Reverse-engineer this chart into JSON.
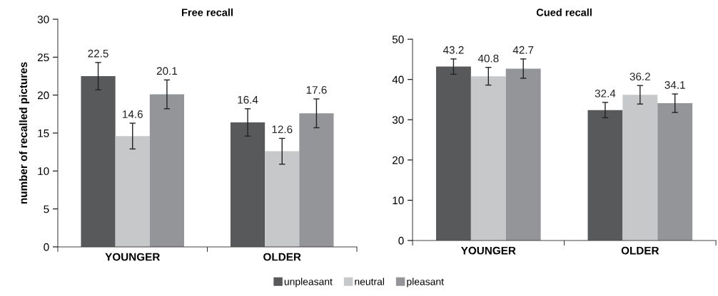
{
  "chart_data": [
    {
      "type": "bar",
      "title": "Free recall",
      "ylabel": "number of recalled pictures",
      "categories": [
        "YOUNGER",
        "OLDER"
      ],
      "series": [
        {
          "name": "unpleasant",
          "color": "#58595b",
          "values": [
            22.5,
            16.4
          ],
          "errors": [
            1.8,
            1.8
          ]
        },
        {
          "name": "neutral",
          "color": "#c7c8ca",
          "values": [
            14.6,
            12.6
          ],
          "errors": [
            1.7,
            1.7
          ]
        },
        {
          "name": "pleasant",
          "color": "#939598",
          "values": [
            20.1,
            17.6
          ],
          "errors": [
            1.9,
            1.9
          ]
        }
      ],
      "ylim": [
        0,
        30
      ],
      "yticks": [
        0,
        5,
        10,
        15,
        20,
        25,
        30
      ],
      "data_labels": true,
      "grid": false,
      "legend": "bottom"
    },
    {
      "type": "bar",
      "title": "Cued recall",
      "categories": [
        "YOUNGER",
        "OLDER"
      ],
      "series": [
        {
          "color": "#58595b",
          "values": [
            43.2,
            32.4
          ],
          "errors": [
            1.9,
            1.9
          ]
        },
        {
          "color": "#c7c8ca",
          "values": [
            40.8,
            36.2
          ],
          "errors": [
            2.2,
            2.3
          ]
        },
        {
          "color": "#939598",
          "values": [
            42.7,
            34.1
          ],
          "errors": [
            2.4,
            2.3
          ]
        }
      ],
      "ylim": [
        0,
        50
      ],
      "yticks": [
        0,
        10,
        20,
        30,
        40,
        50
      ],
      "data_labels": true,
      "grid": false
    }
  ]
}
